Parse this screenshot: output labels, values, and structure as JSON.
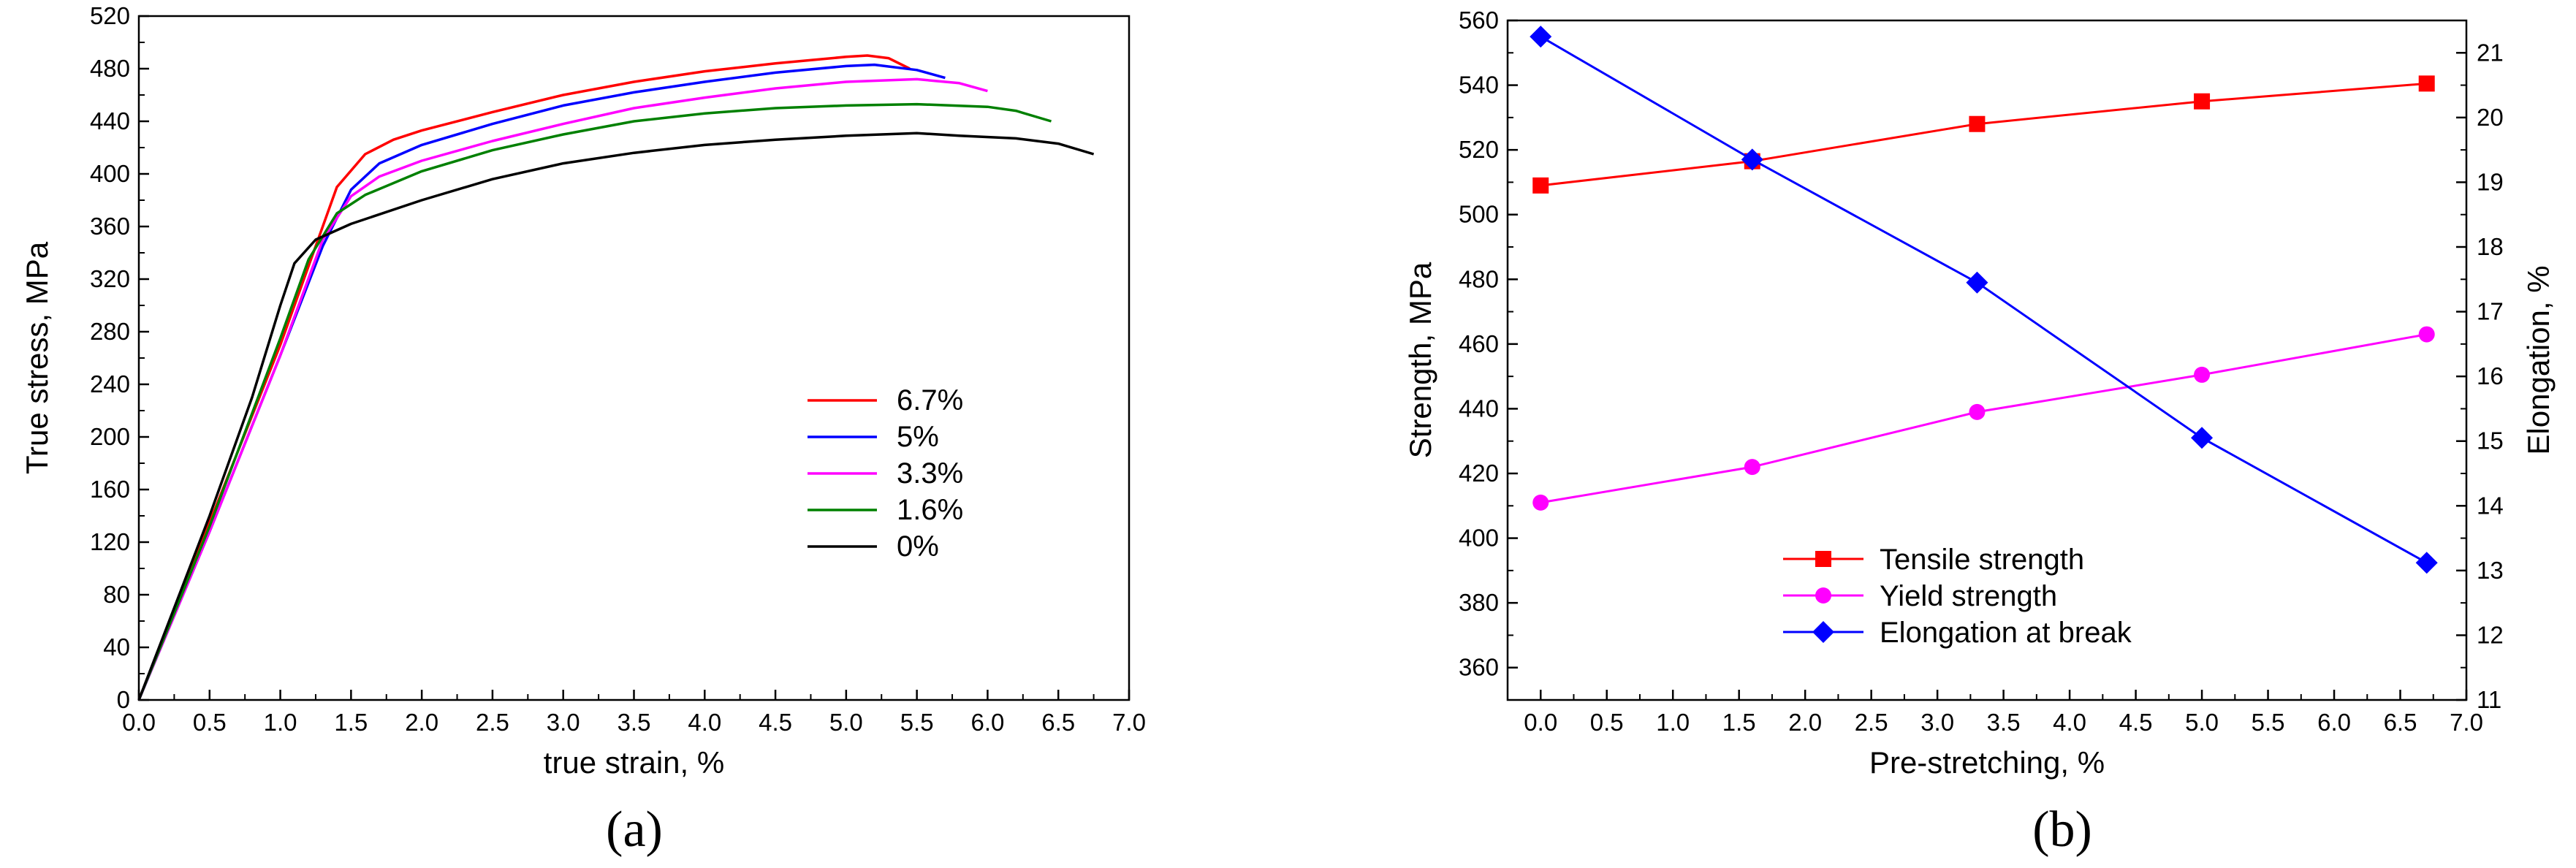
{
  "chart_data": [
    {
      "panel_label": "(a)",
      "type": "line",
      "xlabel": "true strain, %",
      "ylabel": "True stress, MPa",
      "xlim": [
        0,
        7
      ],
      "ylim": [
        0,
        520
      ],
      "xticks": [
        "0.0",
        "0.5",
        "1.0",
        "1.5",
        "2.0",
        "2.5",
        "3.0",
        "3.5",
        "4.0",
        "4.5",
        "5.0",
        "5.5",
        "6.0",
        "6.5",
        "7.0"
      ],
      "yticks": [
        "0",
        "40",
        "80",
        "120",
        "160",
        "200",
        "240",
        "280",
        "320",
        "360",
        "400",
        "440",
        "480",
        "520"
      ],
      "legend_position": "right-middle",
      "series": [
        {
          "name": "6.7%",
          "color": "#ff0000",
          "points": [
            [
              0,
              0
            ],
            [
              0.5,
              135
            ],
            [
              1.0,
              270
            ],
            [
              1.2,
              330
            ],
            [
              1.4,
              390
            ],
            [
              1.6,
              415
            ],
            [
              1.8,
              426
            ],
            [
              2.0,
              433
            ],
            [
              2.5,
              447
            ],
            [
              3.0,
              460
            ],
            [
              3.5,
              470
            ],
            [
              4.0,
              478
            ],
            [
              4.5,
              484
            ],
            [
              5.0,
              489
            ],
            [
              5.15,
              490
            ],
            [
              5.3,
              488
            ],
            [
              5.45,
              480
            ]
          ]
        },
        {
          "name": "5%",
          "color": "#0000ff",
          "points": [
            [
              0,
              0
            ],
            [
              0.5,
              128
            ],
            [
              1.0,
              262
            ],
            [
              1.3,
              345
            ],
            [
              1.5,
              388
            ],
            [
              1.7,
              408
            ],
            [
              2.0,
              422
            ],
            [
              2.5,
              438
            ],
            [
              3.0,
              452
            ],
            [
              3.5,
              462
            ],
            [
              4.0,
              470
            ],
            [
              4.5,
              477
            ],
            [
              5.0,
              482
            ],
            [
              5.2,
              483
            ],
            [
              5.5,
              479
            ],
            [
              5.7,
              473
            ]
          ]
        },
        {
          "name": "3.3%",
          "color": "#ff00ff",
          "points": [
            [
              0,
              0
            ],
            [
              0.5,
              128
            ],
            [
              1.0,
              262
            ],
            [
              1.3,
              350
            ],
            [
              1.5,
              383
            ],
            [
              1.7,
              398
            ],
            [
              2.0,
              410
            ],
            [
              2.5,
              425
            ],
            [
              3.0,
              438
            ],
            [
              3.5,
              450
            ],
            [
              4.0,
              458
            ],
            [
              4.5,
              465
            ],
            [
              5.0,
              470
            ],
            [
              5.5,
              472
            ],
            [
              5.8,
              469
            ],
            [
              6.0,
              463
            ]
          ]
        },
        {
          "name": "1.6%",
          "color": "#008000",
          "points": [
            [
              0,
              0
            ],
            [
              0.5,
              132
            ],
            [
              1.0,
              275
            ],
            [
              1.2,
              335
            ],
            [
              1.4,
              370
            ],
            [
              1.6,
              384
            ],
            [
              2.0,
              402
            ],
            [
              2.5,
              418
            ],
            [
              3.0,
              430
            ],
            [
              3.5,
              440
            ],
            [
              4.0,
              446
            ],
            [
              4.5,
              450
            ],
            [
              5.0,
              452
            ],
            [
              5.5,
              453
            ],
            [
              6.0,
              451
            ],
            [
              6.2,
              448
            ],
            [
              6.45,
              440
            ]
          ]
        },
        {
          "name": "0%",
          "color": "#000000",
          "points": [
            [
              0,
              0
            ],
            [
              0.5,
              140
            ],
            [
              0.8,
              230
            ],
            [
              1.0,
              300
            ],
            [
              1.1,
              332
            ],
            [
              1.25,
              350
            ],
            [
              1.5,
              362
            ],
            [
              2.0,
              380
            ],
            [
              2.5,
              396
            ],
            [
              3.0,
              408
            ],
            [
              3.5,
              416
            ],
            [
              4.0,
              422
            ],
            [
              4.5,
              426
            ],
            [
              5.0,
              429
            ],
            [
              5.5,
              431
            ],
            [
              5.8,
              429
            ],
            [
              6.2,
              427
            ],
            [
              6.5,
              423
            ],
            [
              6.75,
              415
            ]
          ]
        }
      ]
    },
    {
      "panel_label": "(b)",
      "type": "line",
      "xlabel": "Pre-stretching, %",
      "ylabel": "Strength, MPa",
      "y2label": "Elongation, %",
      "xlim": [
        -0.25,
        7.0
      ],
      "ylim": [
        350,
        560
      ],
      "y2lim": [
        11,
        21.5
      ],
      "xticks": [
        "0.0",
        "0.5",
        "1.0",
        "1.5",
        "2.0",
        "2.5",
        "3.0",
        "3.5",
        "4.0",
        "4.5",
        "5.0",
        "5.5",
        "6.0",
        "6.5",
        "7.0"
      ],
      "yticks": [
        "360",
        "380",
        "400",
        "420",
        "440",
        "460",
        "480",
        "500",
        "520",
        "540",
        "560"
      ],
      "y2ticks": [
        "11",
        "12",
        "13",
        "14",
        "15",
        "16",
        "17",
        "18",
        "19",
        "20",
        "21"
      ],
      "legend_position": "bottom-center",
      "x": [
        0,
        1.6,
        3.3,
        5.0,
        6.7
      ],
      "series": [
        {
          "name": "Tensile strength",
          "color": "#ff0000",
          "marker": "square",
          "axis": "left",
          "values": [
            509,
            516.5,
            528,
            535,
            540.5
          ]
        },
        {
          "name": "Yield strength",
          "color": "#ff00ff",
          "marker": "circle",
          "axis": "left",
          "values": [
            411,
            422,
            439,
            450.5,
            463
          ]
        },
        {
          "name": "Elongation at break",
          "color": "#0000ff",
          "marker": "diamond",
          "axis": "right",
          "values": [
            21.25,
            19.35,
            17.45,
            15.05,
            13.12
          ]
        }
      ]
    }
  ]
}
